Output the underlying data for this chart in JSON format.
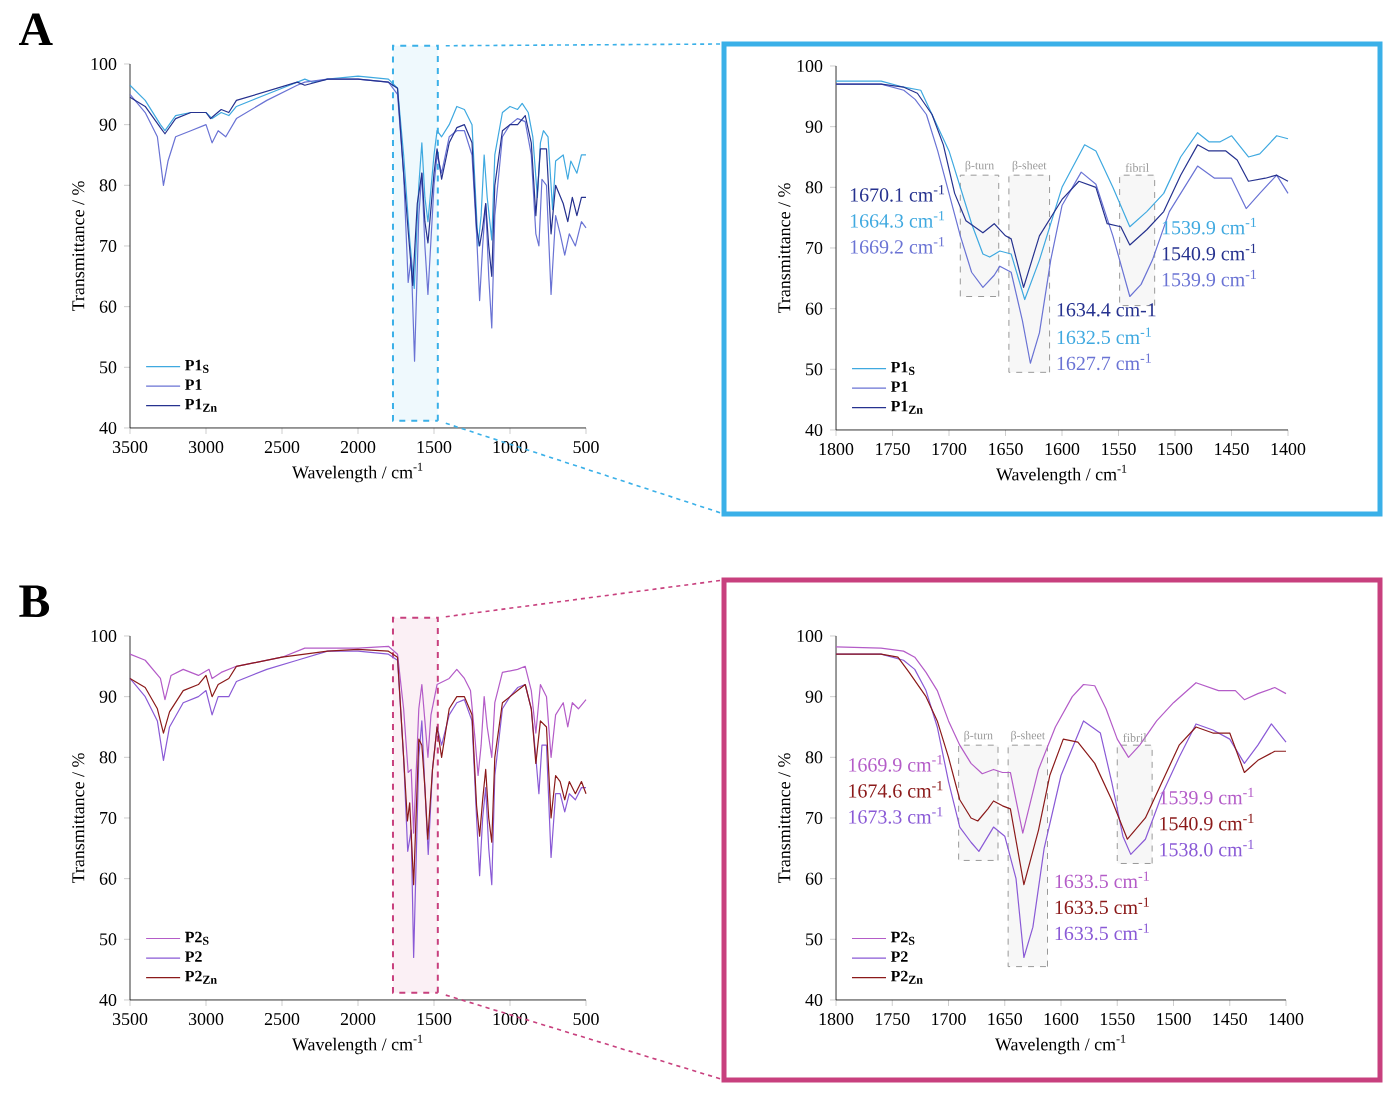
{
  "chart_data": [
    {
      "type": "line",
      "title": "A",
      "xlabel": "Wavelength / cm$^{-1}$",
      "ylabel": "Transmittance / %",
      "xlim": [
        3500,
        500
      ],
      "ylim": [
        40,
        100
      ],
      "xticks": [
        3500,
        3000,
        2500,
        2000,
        1500,
        1000,
        500
      ],
      "yticks": [
        40,
        50,
        60,
        70,
        80,
        90,
        100
      ],
      "legend": "bottom left",
      "bands": [
        {
          "axis": "x",
          "from": 1770,
          "to": 1475,
          "color": "#3ab0e8"
        }
      ],
      "series": [
        {
          "name": "P1$_{S}$",
          "color": "#3fa9e0",
          "x": [
            3500,
            3400,
            3300,
            3270,
            3200,
            3100,
            3000,
            2960,
            2900,
            2850,
            2800,
            2500,
            2350,
            2300,
            2200,
            2000,
            1800,
            1740,
            1700,
            1660,
            1630,
            1600,
            1580,
            1560,
            1540,
            1500,
            1480,
            1450,
            1400,
            1350,
            1300,
            1250,
            1230,
            1210,
            1190,
            1170,
            1150,
            1120,
            1100,
            1050,
            1000,
            950,
            920,
            880,
            850,
            820,
            800,
            780,
            750,
            720,
            700,
            650,
            620,
            600,
            560,
            530,
            500
          ],
          "values": [
            96.5,
            94,
            90,
            89,
            91.5,
            92,
            92,
            91,
            92,
            91.5,
            93,
            96,
            97.5,
            97,
            97.5,
            98,
            97.5,
            96,
            85,
            71,
            63,
            80,
            87,
            78,
            74,
            85,
            89,
            88,
            90,
            93,
            92.5,
            90,
            80,
            70,
            75,
            85,
            78,
            71,
            85,
            92,
            93,
            92.5,
            93.5,
            92,
            88,
            78,
            87,
            89,
            88,
            76,
            84,
            85,
            81,
            84,
            82,
            85,
            85
          ]
        },
        {
          "name": "P1",
          "color": "#6a73d4",
          "x": [
            3500,
            3400,
            3320,
            3280,
            3250,
            3200,
            3100,
            3000,
            2960,
            2920,
            2870,
            2800,
            2600,
            2400,
            2350,
            2200,
            2000,
            1800,
            1740,
            1700,
            1670,
            1650,
            1628,
            1600,
            1580,
            1560,
            1540,
            1500,
            1480,
            1450,
            1400,
            1350,
            1300,
            1250,
            1220,
            1200,
            1180,
            1160,
            1140,
            1120,
            1100,
            1050,
            1000,
            950,
            900,
            860,
            830,
            810,
            790,
            760,
            730,
            700,
            670,
            640,
            610,
            570,
            530,
            500
          ],
          "values": [
            95,
            92,
            88,
            80,
            84,
            88,
            89,
            90,
            87,
            89,
            88,
            91,
            94,
            96.5,
            97,
            97.5,
            97.5,
            97,
            95,
            82,
            64,
            68,
            51,
            75,
            82,
            70,
            62,
            80,
            85,
            82,
            88,
            89,
            89,
            85,
            72,
            61,
            70,
            77,
            65,
            56.5,
            75,
            88,
            90,
            91,
            90.5,
            85,
            72,
            70,
            81,
            80,
            62,
            75,
            72,
            68.5,
            72,
            70,
            74,
            73
          ]
        },
        {
          "name": "P1$_{Zn}$",
          "color": "#26328f",
          "x": [
            3500,
            3400,
            3300,
            3270,
            3200,
            3100,
            3000,
            2970,
            2900,
            2850,
            2800,
            2600,
            2400,
            2350,
            2200,
            2000,
            1800,
            1740,
            1700,
            1670,
            1640,
            1610,
            1580,
            1560,
            1540,
            1500,
            1480,
            1450,
            1400,
            1350,
            1300,
            1250,
            1220,
            1200,
            1180,
            1160,
            1140,
            1120,
            1100,
            1050,
            1000,
            950,
            900,
            860,
            830,
            800,
            760,
            730,
            700,
            650,
            620,
            590,
            560,
            530,
            500
          ],
          "values": [
            94.5,
            93,
            89.5,
            88.5,
            91,
            92,
            92,
            91,
            92.5,
            92,
            94,
            95.5,
            97,
            96.5,
            97.5,
            97.5,
            97,
            96,
            82,
            72.5,
            63.5,
            77,
            82,
            74,
            70.5,
            82,
            86,
            81,
            87,
            89.5,
            90,
            87,
            73,
            70,
            73,
            77,
            70,
            65,
            80,
            89,
            90,
            90,
            91.5,
            87,
            75,
            86,
            86,
            72,
            80,
            77,
            74,
            78,
            75,
            78,
            78
          ]
        }
      ]
    },
    {
      "type": "line",
      "xlabel": "Wavelength / cm$^{-1}$",
      "ylabel": "Transmittance / %",
      "xlim": [
        1800,
        1400
      ],
      "ylim": [
        40,
        100
      ],
      "xticks": [
        1800,
        1750,
        1700,
        1650,
        1600,
        1550,
        1500,
        1450,
        1400
      ],
      "yticks": [
        40,
        50,
        60,
        70,
        80,
        90,
        100
      ],
      "legend": "bottom left",
      "bands": [
        {
          "axis": "x",
          "from": 1690,
          "to": 1656,
          "label": "β-turn",
          "color": "#999999"
        },
        {
          "axis": "x",
          "from": 1647,
          "to": 1611,
          "label": "β-sheet",
          "color": "#999999"
        },
        {
          "axis": "x",
          "from": 1549,
          "to": 1518,
          "label": "fibril",
          "color": "#999999"
        }
      ],
      "annotations": [
        {
          "text": "1670.1 cm$^{-1}$",
          "x": 1670.1,
          "y": 72.5
        },
        {
          "text": "1664.3 cm$^{-1}$",
          "x": 1664.3,
          "y": 68.5
        },
        {
          "text": "1669.2 cm$^{-1}$",
          "x": 1669.2,
          "y": 63.5
        },
        {
          "text": "1634.4 cm-1",
          "x": 1634.4,
          "y": 63.5
        },
        {
          "text": "1632.5 cm$^{-1}$",
          "x": 1632.5,
          "y": 61.5
        },
        {
          "text": "1627.7 cm$^{-1}$",
          "x": 1627.7,
          "y": 51
        },
        {
          "text": "1539.9 cm$^{-1}$",
          "x": 1539.9,
          "y": 73.5
        },
        {
          "text": "1540.9 cm$^{-1}$",
          "x": 1540.9,
          "y": 70.5
        },
        {
          "text": "1539.9 cm$^{-1}$",
          "x": 1539.9,
          "y": 62
        }
      ],
      "series": [
        {
          "name": "P1$_{S}$",
          "color": "#3fa9e0",
          "x": [
            1800,
            1760,
            1740,
            1725,
            1710,
            1700,
            1690,
            1680,
            1670,
            1664,
            1655,
            1645,
            1633,
            1620,
            1600,
            1580,
            1570,
            1555,
            1540,
            1525,
            1510,
            1495,
            1480,
            1470,
            1460,
            1450,
            1435,
            1425,
            1410,
            1400
          ],
          "values": [
            97.5,
            97.5,
            96.5,
            96,
            90,
            86,
            80,
            74,
            69,
            68.5,
            69.5,
            69,
            61.5,
            68,
            80,
            87,
            86,
            80,
            73.5,
            76,
            79,
            85,
            89,
            87.5,
            87.5,
            88.5,
            85,
            85.5,
            88.5,
            88
          ]
        },
        {
          "name": "P1",
          "color": "#6a73d4",
          "x": [
            1800,
            1760,
            1740,
            1730,
            1720,
            1710,
            1700,
            1690,
            1680,
            1670,
            1660,
            1655,
            1645,
            1635,
            1628,
            1620,
            1610,
            1600,
            1583,
            1570,
            1555,
            1540,
            1530,
            1520,
            1505,
            1480,
            1465,
            1450,
            1437,
            1425,
            1410,
            1400
          ],
          "values": [
            97,
            97,
            96,
            94.5,
            92,
            86,
            79,
            72,
            66,
            63.5,
            65.5,
            67,
            66,
            58,
            51,
            56,
            68,
            77,
            82.5,
            80.5,
            72,
            62,
            64,
            68,
            76,
            83.5,
            81.5,
            81.5,
            76.5,
            79,
            82,
            79
          ]
        },
        {
          "name": "P1$_{Zn}$",
          "color": "#26328f",
          "x": [
            1800,
            1760,
            1740,
            1728,
            1715,
            1705,
            1695,
            1685,
            1670,
            1660,
            1650,
            1645,
            1634,
            1620,
            1600,
            1585,
            1570,
            1560,
            1548,
            1540,
            1525,
            1510,
            1495,
            1480,
            1470,
            1455,
            1445,
            1435,
            1420,
            1410,
            1400
          ],
          "values": [
            97,
            97,
            96.5,
            95.5,
            92,
            87,
            79,
            74.5,
            72.5,
            74,
            72,
            71.5,
            63.5,
            72,
            78,
            81,
            80,
            74,
            73.5,
            70.5,
            73,
            76,
            82,
            87,
            86,
            86,
            84.5,
            81,
            81.5,
            82,
            81
          ]
        }
      ]
    },
    {
      "type": "line",
      "title": "B",
      "xlabel": "Wavelength / cm$^{-1}$",
      "ylabel": "Transmittance / %",
      "xlim": [
        3500,
        500
      ],
      "ylim": [
        40,
        100
      ],
      "xticks": [
        3500,
        3000,
        2500,
        2000,
        1500,
        1000,
        500
      ],
      "yticks": [
        40,
        50,
        60,
        70,
        80,
        90,
        100
      ],
      "legend": "bottom left",
      "bands": [
        {
          "axis": "x",
          "from": 1770,
          "to": 1475,
          "color": "#c8407e"
        }
      ],
      "series": [
        {
          "name": "P2$_{S}$",
          "color": "#b45cc8",
          "x": [
            3500,
            3400,
            3300,
            3270,
            3230,
            3150,
            3050,
            2980,
            2960,
            2900,
            2800,
            2500,
            2350,
            2000,
            1800,
            1740,
            1700,
            1670,
            1650,
            1634,
            1600,
            1580,
            1560,
            1540,
            1520,
            1480,
            1400,
            1350,
            1300,
            1260,
            1230,
            1210,
            1190,
            1170,
            1150,
            1120,
            1100,
            1050,
            950,
            900,
            860,
            830,
            800,
            760,
            730,
            700,
            650,
            620,
            590,
            550,
            500
          ],
          "values": [
            97,
            96,
            93,
            89.5,
            93.5,
            94.5,
            93.5,
            94.5,
            93,
            94,
            95,
            96.5,
            98,
            98,
            98.3,
            97,
            88,
            77.5,
            78,
            67.5,
            88,
            92,
            86,
            80,
            87,
            92,
            93,
            94.5,
            93,
            91,
            83,
            77,
            82,
            90,
            85,
            80,
            89,
            94,
            94.5,
            95,
            91,
            84,
            92,
            90,
            80,
            87,
            89,
            85,
            89,
            88,
            89.5
          ]
        },
        {
          "name": "P2",
          "color": "#8a5ad6",
          "x": [
            3500,
            3400,
            3320,
            3280,
            3240,
            3150,
            3050,
            3000,
            2960,
            2920,
            2850,
            2800,
            2600,
            2400,
            2200,
            2000,
            1800,
            1740,
            1700,
            1673,
            1650,
            1634,
            1600,
            1580,
            1560,
            1538,
            1510,
            1480,
            1450,
            1400,
            1350,
            1300,
            1250,
            1220,
            1200,
            1180,
            1160,
            1140,
            1120,
            1100,
            1050,
            1000,
            950,
            900,
            860,
            830,
            810,
            790,
            760,
            730,
            700,
            670,
            640,
            610,
            570,
            530,
            500
          ],
          "values": [
            93,
            90,
            86,
            79.5,
            85,
            89,
            90,
            91,
            87,
            90,
            90,
            92.5,
            94.5,
            96,
            97.5,
            97.5,
            97,
            96,
            80,
            64.5,
            68,
            47,
            80,
            86,
            75,
            64,
            78,
            85,
            82,
            87,
            89,
            89.5,
            86,
            70,
            60.5,
            70,
            75,
            65,
            59,
            77,
            88,
            90,
            91.5,
            92,
            88,
            80,
            74,
            82,
            82,
            63.5,
            74,
            74,
            71,
            74,
            73,
            75,
            75
          ]
        },
        {
          "name": "P2$_{Zn}$",
          "color": "#8b1a1a",
          "x": [
            3500,
            3400,
            3320,
            3280,
            3240,
            3150,
            3050,
            3000,
            2960,
            2920,
            2850,
            2800,
            2500,
            2350,
            2200,
            2000,
            1800,
            1740,
            1700,
            1675,
            1660,
            1634,
            1600,
            1580,
            1560,
            1541,
            1510,
            1480,
            1450,
            1400,
            1350,
            1300,
            1250,
            1220,
            1200,
            1180,
            1160,
            1140,
            1120,
            1100,
            1050,
            1000,
            950,
            900,
            860,
            830,
            800,
            760,
            730,
            700,
            670,
            640,
            610,
            570,
            530,
            500
          ],
          "values": [
            93,
            91.5,
            88,
            84,
            87.5,
            91,
            92,
            93.5,
            90,
            92,
            93,
            95,
            96.5,
            97,
            97.5,
            97.8,
            97.5,
            96.5,
            80,
            69.5,
            72.5,
            59,
            83,
            82,
            75,
            66.5,
            78,
            85,
            80,
            88,
            90,
            90,
            87,
            72,
            67,
            73,
            78,
            70,
            66,
            80,
            89,
            90,
            91,
            92,
            88,
            79,
            86,
            85,
            70,
            77,
            76,
            73,
            76,
            74,
            76,
            74
          ]
        }
      ]
    },
    {
      "type": "line",
      "xlabel": "Wavelength / cm$^{-1}$",
      "ylabel": "Transmittance / %",
      "xlim": [
        1800,
        1400
      ],
      "ylim": [
        40,
        100
      ],
      "xticks": [
        1800,
        1750,
        1700,
        1650,
        1600,
        1550,
        1500,
        1450,
        1400
      ],
      "yticks": [
        40,
        50,
        60,
        70,
        80,
        90,
        100
      ],
      "legend": "bottom left",
      "bands": [
        {
          "axis": "x",
          "from": 1691,
          "to": 1656,
          "label": "β-turn",
          "color": "#999999"
        },
        {
          "axis": "x",
          "from": 1647,
          "to": 1612,
          "label": "β-sheet",
          "color": "#999999"
        },
        {
          "axis": "x",
          "from": 1550,
          "to": 1519,
          "label": "fibril",
          "color": "#999999"
        }
      ],
      "annotations": [
        {
          "text": "1669.9 cm$^{-1}$",
          "x": 1669.9,
          "y": 77.5
        },
        {
          "text": "1674.6 cm$^{-1}$",
          "x": 1674.6,
          "y": 69.5
        },
        {
          "text": "1673.3 cm$^{-1}$",
          "x": 1673.3,
          "y": 64.5
        },
        {
          "text": "1633.5 cm$^{-1}$",
          "x": 1633.5,
          "y": 67.5
        },
        {
          "text": "1633.5 cm$^{-1}$",
          "x": 1633.5,
          "y": 59
        },
        {
          "text": "1633.5 cm$^{-1}$",
          "x": 1633.5,
          "y": 47
        },
        {
          "text": "1539.9 cm$^{-1}$",
          "x": 1539.9,
          "y": 80
        },
        {
          "text": "1540.9 cm$^{-1}$",
          "x": 1540.9,
          "y": 66.5
        },
        {
          "text": "1538.0 cm$^{-1}$",
          "x": 1538.0,
          "y": 64
        }
      ],
      "series": [
        {
          "name": "P2$_{S}$",
          "color": "#b45cc8",
          "x": [
            1800,
            1760,
            1740,
            1730,
            1720,
            1710,
            1700,
            1690,
            1680,
            1670,
            1660,
            1652,
            1645,
            1634,
            1620,
            1605,
            1590,
            1580,
            1570,
            1560,
            1550,
            1540,
            1530,
            1515,
            1500,
            1480,
            1460,
            1445,
            1437,
            1425,
            1410,
            1400
          ],
          "values": [
            98.2,
            98,
            97.5,
            96.5,
            94,
            91,
            86,
            82,
            79,
            77.3,
            78,
            77.5,
            77.5,
            67.5,
            78,
            85,
            90,
            92,
            91.8,
            88,
            83,
            80,
            82,
            86,
            89,
            92.3,
            91,
            91,
            89.5,
            90.5,
            91.5,
            90.5
          ]
        },
        {
          "name": "P2",
          "color": "#8a5ad6",
          "x": [
            1800,
            1760,
            1740,
            1730,
            1720,
            1710,
            1700,
            1690,
            1680,
            1673,
            1660,
            1650,
            1640,
            1633,
            1625,
            1615,
            1600,
            1580,
            1565,
            1555,
            1545,
            1538,
            1525,
            1510,
            1495,
            1480,
            1465,
            1450,
            1437,
            1425,
            1413,
            1400
          ],
          "values": [
            97,
            97,
            96,
            94.5,
            91,
            85,
            76,
            68.5,
            66,
            64.5,
            68.5,
            67,
            60,
            47,
            52,
            65,
            77,
            86,
            84,
            76,
            67,
            64,
            66.5,
            74,
            80,
            85.5,
            84.5,
            83,
            79,
            82,
            85.5,
            82.5
          ]
        },
        {
          "name": "P2$_{Zn}$",
          "color": "#8b1a1a",
          "x": [
            1800,
            1760,
            1745,
            1735,
            1720,
            1710,
            1700,
            1690,
            1680,
            1674,
            1665,
            1660,
            1652,
            1645,
            1633,
            1620,
            1610,
            1598,
            1585,
            1570,
            1555,
            1541,
            1525,
            1510,
            1495,
            1480,
            1465,
            1450,
            1437,
            1425,
            1410,
            1400
          ],
          "values": [
            97,
            97,
            96.5,
            94,
            90,
            86,
            80,
            73,
            70,
            69.5,
            71.5,
            72.8,
            72,
            71.5,
            59,
            68,
            77,
            83,
            82.5,
            79,
            73,
            66.5,
            70,
            76,
            82,
            85,
            84,
            84,
            77.5,
            79.5,
            81,
            81
          ]
        }
      ]
    }
  ]
}
